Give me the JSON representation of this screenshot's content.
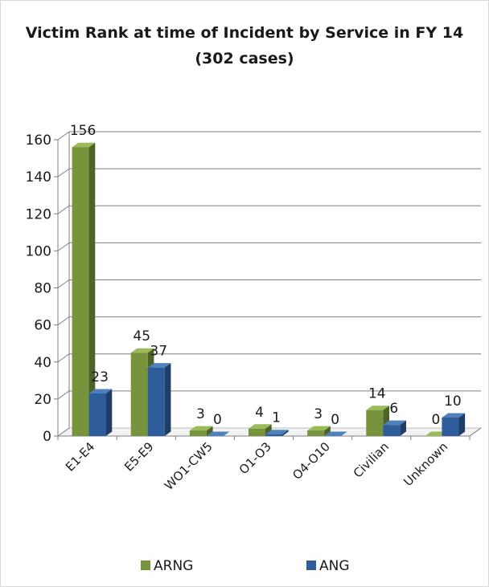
{
  "chart_data": {
    "type": "bar",
    "title_line1": "Victim Rank at time of Incident by Service in FY 14",
    "title_line2": "(302 cases)",
    "categories": [
      "E1-E4",
      "E5-E9",
      "WO1-CW5",
      "O1-O3",
      "O4-O10",
      "Civilian",
      "Unknown"
    ],
    "series": [
      {
        "name": "ARNG",
        "values": [
          156,
          45,
          3,
          4,
          3,
          14,
          0
        ]
      },
      {
        "name": "ANG",
        "values": [
          23,
          37,
          0,
          1,
          0,
          6,
          10
        ]
      }
    ],
    "ylim": [
      0,
      160
    ],
    "yticks": [
      0,
      20,
      40,
      60,
      80,
      100,
      120,
      140,
      160
    ],
    "grid": true,
    "legend_position": "bottom",
    "colors": {
      "ARNG": {
        "front": "#77933c",
        "side": "#4f6228",
        "top": "#9bbb59"
      },
      "ANG": {
        "front": "#2f5d9b",
        "side": "#1f3d66",
        "top": "#4f81bd"
      }
    }
  }
}
